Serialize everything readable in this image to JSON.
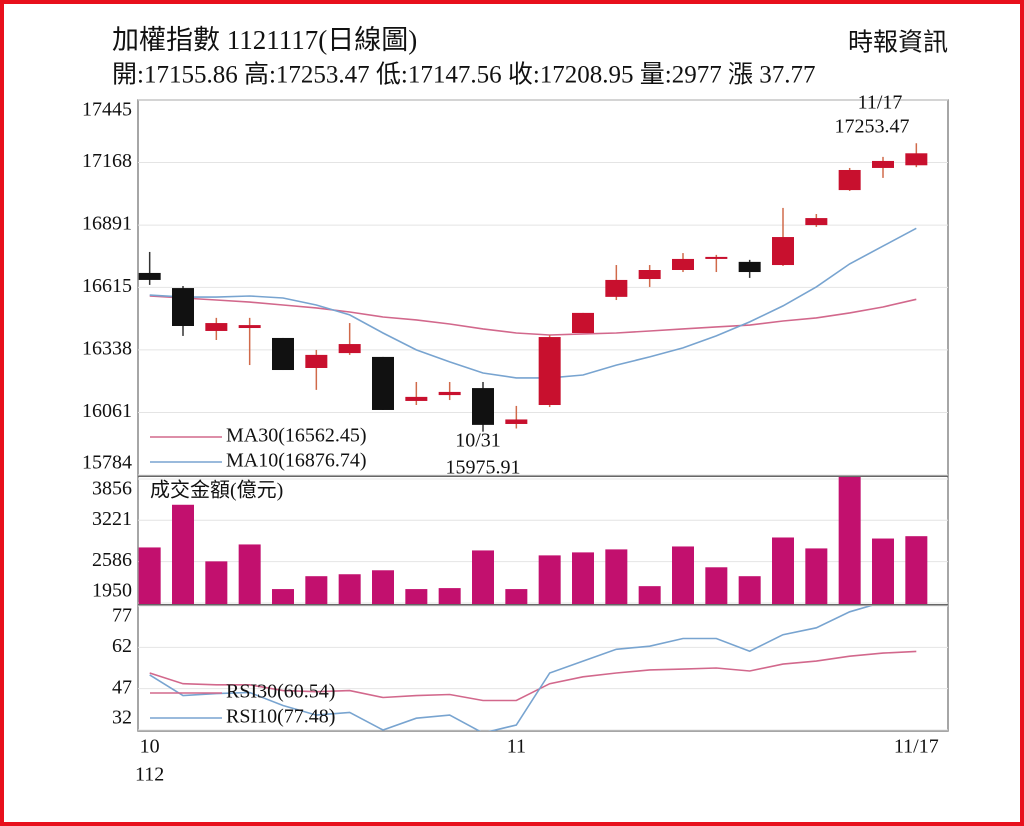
{
  "header": {
    "title": "加權指數 1121117(日線圖)",
    "source": "時報資訊",
    "summary": "開:17155.86 高:17253.47 低:17147.56 收:17208.95 量:2977 漲 37.77"
  },
  "chart_data": [
    {
      "type": "candlestick",
      "open": [
        16679,
        16612,
        16422,
        16435,
        16391,
        16258,
        16324,
        16307,
        16112,
        16138,
        16169,
        16010,
        16094,
        16413,
        16573,
        16652,
        16692,
        16741,
        16728,
        16714,
        16891,
        17046,
        17144,
        17155.86
      ],
      "high": [
        16772,
        16621,
        16480,
        16480,
        16391,
        16338,
        16457,
        16307,
        16196,
        16196,
        16196,
        16090,
        16404,
        16502,
        16714,
        16714,
        16767,
        16759,
        16737,
        16967,
        16940,
        17144,
        17193,
        17253.47
      ],
      "low": [
        16626,
        16400,
        16382,
        16271,
        16249,
        16161,
        16316,
        16072,
        16094,
        16116,
        15975.91,
        15990,
        16085,
        16413,
        16559,
        16617,
        16683,
        16683,
        16657,
        16710,
        16883,
        17042,
        17100,
        17147.56
      ],
      "close": [
        16648,
        16444,
        16457,
        16448,
        16249,
        16316,
        16364,
        16072,
        16130,
        16152,
        16006,
        16030,
        16395,
        16502,
        16648,
        16692,
        16741,
        16750,
        16683,
        16838,
        16922,
        17135,
        17175,
        17208.95
      ],
      "up_color": "#c8102e",
      "down_color": "#111111",
      "series": [
        {
          "name": "MA30(16562.45)",
          "color": "#d2688c",
          "values": [
            16577,
            16568,
            16559,
            16550,
            16537,
            16524,
            16506,
            16484,
            16471,
            16453,
            16431,
            16413,
            16404,
            16409,
            16413,
            16422,
            16431,
            16440,
            16448,
            16466,
            16480,
            16502,
            16528,
            16562.45
          ]
        },
        {
          "name": "MA10(16876.74)",
          "color": "#78a4d0",
          "values": [
            16581,
            16572,
            16572,
            16577,
            16568,
            16537,
            16493,
            16413,
            16338,
            16285,
            16236,
            16214,
            16214,
            16227,
            16271,
            16307,
            16347,
            16400,
            16462,
            16533,
            16617,
            16719,
            16798,
            16876.74
          ]
        }
      ],
      "annotations": [
        {
          "text": [
            "11/17",
            "17253.47"
          ]
        },
        {
          "text": [
            "10/31",
            "15975.91"
          ]
        }
      ],
      "ylim": [
        15784,
        17445
      ],
      "yticks": [
        15784,
        16061,
        16338,
        16615,
        16891,
        17168,
        17445
      ],
      "grid": true
    },
    {
      "type": "bar",
      "title": "成交金額(億元)",
      "color": "#c2106e",
      "values": [
        2804,
        3460,
        2590,
        2850,
        2164,
        2362,
        2392,
        2453,
        2164,
        2179,
        2758,
        2164,
        2682,
        2728,
        2774,
        2209,
        2819,
        2499,
        2362,
        2957,
        2789,
        3950,
        2941,
        2977
      ],
      "ylim": [
        1950,
        3856
      ],
      "yticks": [
        1950,
        2586,
        3221,
        3856
      ],
      "grid": true
    },
    {
      "type": "line",
      "categories": [
        "10",
        null,
        null,
        null,
        null,
        null,
        null,
        null,
        null,
        null,
        null,
        "11",
        null,
        null,
        null,
        null,
        null,
        null,
        null,
        null,
        null,
        null,
        null,
        "11/17"
      ],
      "x_year_label": "112",
      "series": [
        {
          "name": "RSI30(60.54)",
          "color": "#d2688c",
          "values": [
            52.7,
            48.8,
            48.4,
            48.4,
            46.3,
            45.9,
            46.3,
            43.8,
            44.5,
            44.9,
            42.7,
            42.7,
            48.8,
            51.3,
            52.7,
            53.8,
            54.1,
            54.5,
            53.4,
            55.9,
            57.0,
            58.8,
            59.9,
            60.54
          ]
        },
        {
          "name": "RSI10(77.48)",
          "color": "#78a4d0",
          "values": [
            52.0,
            44.5,
            45.2,
            45.6,
            40.9,
            37.4,
            38.4,
            32.0,
            36.3,
            37.4,
            30.9,
            33.8,
            52.7,
            57.0,
            61.3,
            62.4,
            65.2,
            65.2,
            60.6,
            66.6,
            69.1,
            74.9,
            78.4,
            77.48
          ]
        }
      ],
      "ylim": [
        32,
        77
      ],
      "yticks": [
        32,
        47,
        62,
        77
      ],
      "grid": true
    }
  ]
}
